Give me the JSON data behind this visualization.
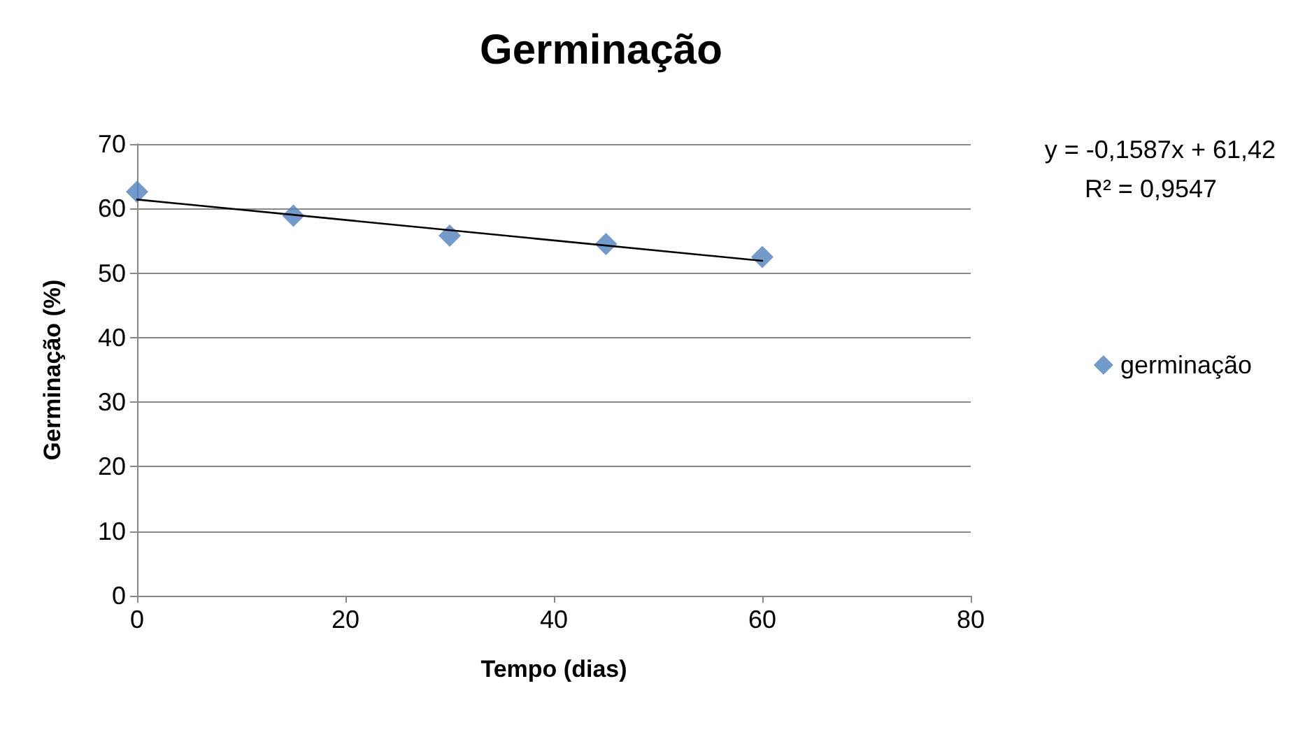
{
  "chart_data": {
    "type": "scatter",
    "title": "Germinação",
    "xlabel": "Tempo (dias)",
    "ylabel": "Germinação (%)",
    "x": [
      0,
      15,
      30,
      45,
      60
    ],
    "series": [
      {
        "name": "germinação",
        "color": "#4f81bd",
        "values": [
          62.6,
          58.9,
          55.8,
          54.5,
          52.5
        ],
        "marker": "diamond"
      },
      {
        "type": "line",
        "color": "#000000",
        "x": [
          0,
          60
        ],
        "values": [
          61.4,
          51.9
        ],
        "marker": "none",
        "line_style": "solid"
      }
    ],
    "xlim": [
      0,
      80
    ],
    "xticks": [
      0,
      20,
      40,
      60,
      80
    ],
    "ylim": [
      0,
      70
    ],
    "yticks": [
      0,
      10,
      20,
      30,
      40,
      50,
      60,
      70
    ],
    "grid": "y",
    "legend": "right",
    "annotations": [
      "y = -0,1587x + 61,42",
      "R² = 0,9547"
    ]
  }
}
